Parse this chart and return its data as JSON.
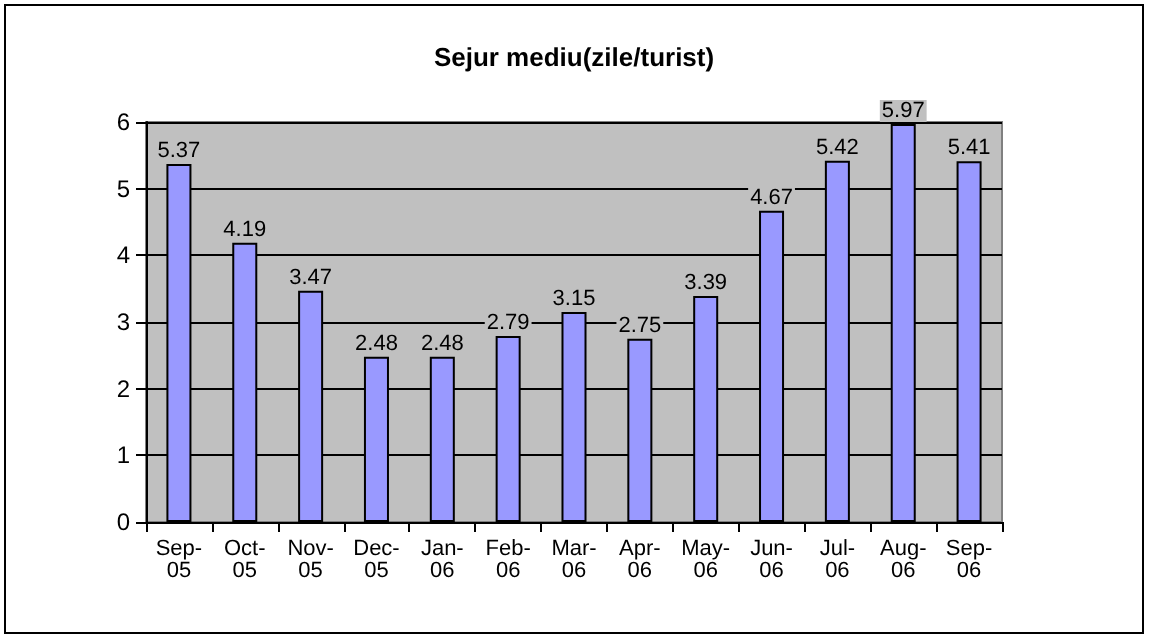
{
  "chart_data": {
    "type": "bar",
    "title": "Sejur mediu(zile/turist)",
    "categories": [
      "Sep-05",
      "Oct-05",
      "Nov-05",
      "Dec-05",
      "Jan-06",
      "Feb-06",
      "Mar-06",
      "Apr-06",
      "May-06",
      "Jun-06",
      "Jul-06",
      "Aug-06",
      "Sep-06"
    ],
    "values": [
      5.37,
      4.19,
      3.47,
      2.48,
      2.48,
      2.79,
      3.15,
      2.75,
      3.39,
      4.67,
      5.42,
      5.97,
      5.41
    ],
    "color": "#9999ff",
    "ylim": [
      0,
      6
    ],
    "yticks": [
      0,
      1,
      2,
      3,
      4,
      5,
      6
    ],
    "grid": "y",
    "data_labels": true
  }
}
